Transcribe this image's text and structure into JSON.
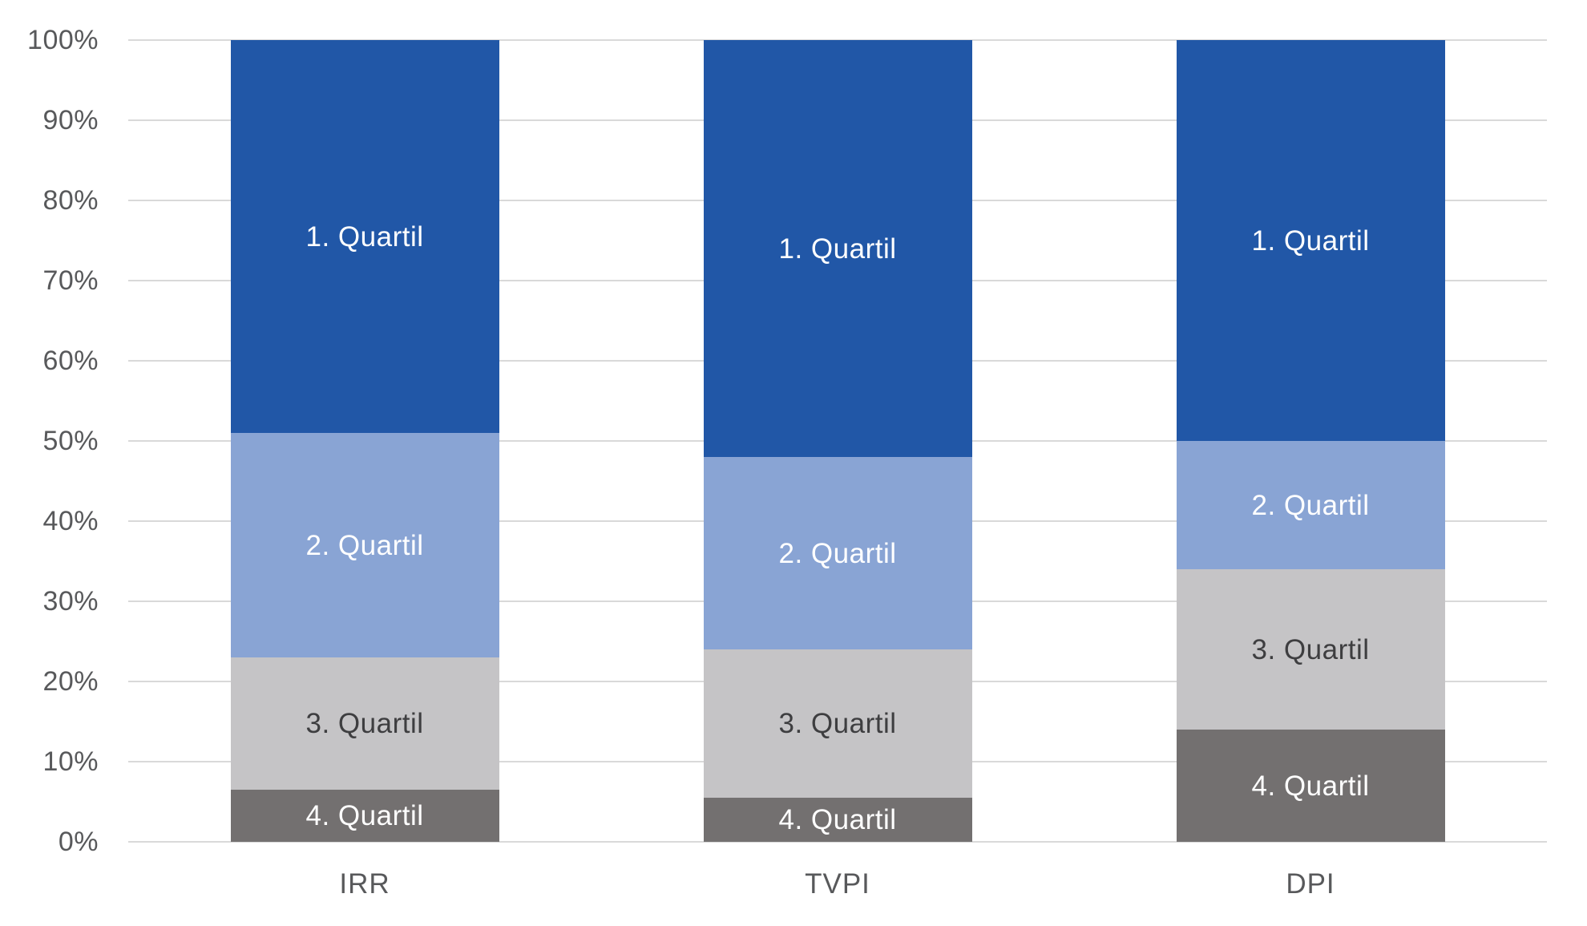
{
  "chart_data": {
    "type": "bar",
    "variant": "stacked-100-percent-vertical",
    "title": "",
    "xlabel": "",
    "ylabel": "",
    "categories": [
      "IRR",
      "TVPI",
      "DPI"
    ],
    "series": [
      {
        "name": "1. Quartil",
        "color": "#2157A7",
        "label_color": "#FFFFFF",
        "values": [
          49,
          52,
          50
        ]
      },
      {
        "name": "2. Quartil",
        "color": "#89A4D4",
        "label_color": "#FFFFFF",
        "values": [
          28,
          24,
          16
        ]
      },
      {
        "name": "3. Quartil",
        "color": "#C5C4C6",
        "label_color": "#3E3E40",
        "values": [
          16.5,
          18.5,
          20
        ]
      },
      {
        "name": "4. Quartil",
        "color": "#737070",
        "label_color": "#FFFFFF",
        "values": [
          6.5,
          5.5,
          14
        ]
      }
    ],
    "stack_order": "first-series-on-top",
    "segment_labels": "series-name-centered-in-segment",
    "ylim": [
      0,
      100
    ],
    "y_ticks": [
      {
        "value": 0,
        "label": "0%"
      },
      {
        "value": 10,
        "label": "10%"
      },
      {
        "value": 20,
        "label": "20%"
      },
      {
        "value": 30,
        "label": "30%"
      },
      {
        "value": 40,
        "label": "40%"
      },
      {
        "value": 50,
        "label": "50%"
      },
      {
        "value": 60,
        "label": "60%"
      },
      {
        "value": 70,
        "label": "70%"
      },
      {
        "value": 80,
        "label": "80%"
      },
      {
        "value": 90,
        "label": "90%"
      },
      {
        "value": 100,
        "label": "100%"
      }
    ],
    "grid": true,
    "legend": false,
    "styles": {
      "background": "#FFFFFF",
      "gridline_color": "#D9D9D9",
      "axis_text_color": "#58595B"
    }
  }
}
